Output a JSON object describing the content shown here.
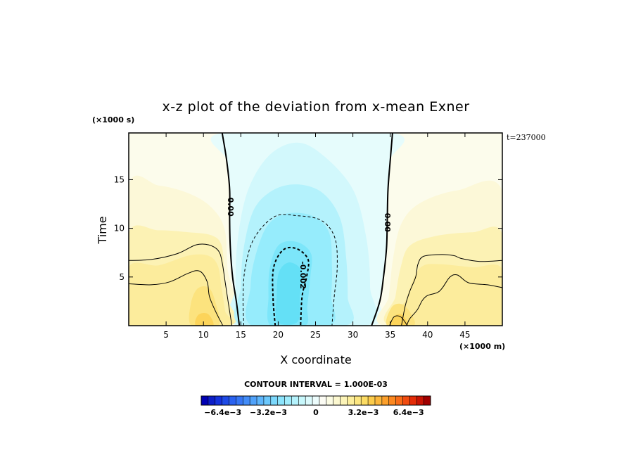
{
  "chart_data": {
    "type": "heatmap",
    "title": "x-z plot of the deviation from x-mean Exner",
    "xlabel": "X coordinate",
    "ylabel": "Time",
    "x_unit": "(×1000 m)",
    "y_unit": "(×1000 s)",
    "xlim": [
      0,
      50
    ],
    "ylim": [
      0,
      19.8
    ],
    "x_ticks": [
      5,
      10,
      15,
      20,
      25,
      30,
      35,
      40,
      45
    ],
    "y_ticks": [
      5,
      10,
      15
    ],
    "time_label": "t=237000",
    "contour_interval_label": "CONTOUR INTERVAL = 1.000E-03",
    "contour_labels": [
      {
        "text": "0.00",
        "x": 13.6,
        "y": 12.2
      },
      {
        "text": "0.00",
        "x": 34.6,
        "y": 10.6
      },
      {
        "text": "-0.002",
        "x": 23.3,
        "y": 5.2
      }
    ],
    "contours": [
      {
        "level": 0,
        "points": [
          [
            12.5,
            19.8
          ],
          [
            13.1,
            17
          ],
          [
            13.5,
            14
          ],
          [
            13.5,
            11
          ],
          [
            13.6,
            8
          ],
          [
            13.9,
            5
          ],
          [
            14.4,
            2.5
          ],
          [
            14.8,
            0
          ]
        ]
      },
      {
        "level": 0,
        "points": [
          [
            35.3,
            19.8
          ],
          [
            35.0,
            17
          ],
          [
            34.7,
            14
          ],
          [
            34.6,
            11
          ],
          [
            34.5,
            8
          ],
          [
            34.1,
            5
          ],
          [
            33.6,
            2.5
          ],
          [
            32.5,
            0
          ]
        ]
      },
      {
        "level": -0.001,
        "points": [
          [
            15.4,
            0
          ],
          [
            15.3,
            3
          ],
          [
            15.6,
            6
          ],
          [
            16.8,
            9
          ],
          [
            19.5,
            11.2
          ],
          [
            22.5,
            11.3
          ],
          [
            25.8,
            10.8
          ],
          [
            27.6,
            9
          ],
          [
            27.9,
            6
          ],
          [
            27.5,
            3
          ],
          [
            27.2,
            0
          ]
        ]
      },
      {
        "level": -0.002,
        "points": [
          [
            19.6,
            0
          ],
          [
            19.3,
            3
          ],
          [
            19.4,
            6
          ],
          [
            20.7,
            7.8
          ],
          [
            22.5,
            7.9
          ],
          [
            24.0,
            6.8
          ],
          [
            23.8,
            5
          ],
          [
            23.2,
            3
          ],
          [
            23.0,
            0
          ]
        ]
      },
      {
        "level": 0.001,
        "points": [
          [
            0,
            6.7
          ],
          [
            3,
            6.8
          ],
          [
            6.5,
            7.4
          ],
          [
            9,
            8.3
          ],
          [
            10.7,
            8.3
          ],
          [
            12,
            7.7
          ],
          [
            12.5,
            6.5
          ],
          [
            12.9,
            4.5
          ],
          [
            13.3,
            2.5
          ],
          [
            13.8,
            0
          ]
        ]
      },
      {
        "level": 0.001,
        "points": [
          [
            0,
            4.3
          ],
          [
            3,
            4.2
          ],
          [
            5.5,
            4.5
          ],
          [
            8,
            5.4
          ],
          [
            9.5,
            5.6
          ],
          [
            10.5,
            4.5
          ],
          [
            10.8,
            3
          ],
          [
            11.6,
            1.5
          ],
          [
            12.6,
            0
          ]
        ]
      },
      {
        "level": 0.001,
        "points": [
          [
            50,
            6.7
          ],
          [
            47,
            6.6
          ],
          [
            44.5,
            6.9
          ],
          [
            43.5,
            7.2
          ],
          [
            41.5,
            7.3
          ],
          [
            39.4,
            7.1
          ],
          [
            38.7,
            6.3
          ],
          [
            38.4,
            5.0
          ],
          [
            37.6,
            3.5
          ],
          [
            37.0,
            2
          ],
          [
            36.5,
            0
          ]
        ]
      },
      {
        "level": 0.001,
        "points": [
          [
            50,
            3.9
          ],
          [
            48,
            4.2
          ],
          [
            45.5,
            4.4
          ],
          [
            44.0,
            5.2
          ],
          [
            43.0,
            5.0
          ],
          [
            42.0,
            3.9
          ],
          [
            41.3,
            3.4
          ],
          [
            40.0,
            3.1
          ],
          [
            39.3,
            2.6
          ],
          [
            38.6,
            1.6
          ],
          [
            37.6,
            0.7
          ],
          [
            37.2,
            0
          ]
        ]
      },
      {
        "level": 0.002,
        "points": [
          [
            34.9,
            0
          ],
          [
            35.5,
            0.9
          ],
          [
            36.4,
            0.9
          ],
          [
            37.3,
            0
          ]
        ]
      }
    ],
    "fields": [
      {
        "color": "#fcfcec",
        "points": [
          [
            0,
            19.8
          ],
          [
            12.5,
            19.8
          ],
          [
            13.1,
            17
          ],
          [
            13.5,
            14
          ],
          [
            13.5,
            11
          ],
          [
            13.6,
            8
          ],
          [
            13.9,
            5
          ],
          [
            14.4,
            2.5
          ],
          [
            14.8,
            0
          ],
          [
            0,
            0
          ]
        ]
      },
      {
        "color": "#fcfcec",
        "points": [
          [
            35.3,
            19.8
          ],
          [
            50,
            19.8
          ],
          [
            50,
            0
          ],
          [
            32.5,
            0
          ],
          [
            33.6,
            2.5
          ],
          [
            34.1,
            5
          ],
          [
            34.5,
            8
          ],
          [
            34.6,
            11
          ],
          [
            34.7,
            14
          ],
          [
            35.0,
            17
          ]
        ]
      },
      {
        "color": "#e6fcfc",
        "points": [
          [
            12.5,
            19.8
          ],
          [
            35.3,
            19.8
          ],
          [
            35.0,
            17
          ],
          [
            34.7,
            14
          ],
          [
            34.6,
            11
          ],
          [
            34.5,
            8
          ],
          [
            34.1,
            5
          ],
          [
            33.6,
            2.5
          ],
          [
            32.5,
            0
          ],
          [
            14.8,
            0
          ],
          [
            14.4,
            2.5
          ],
          [
            13.9,
            5
          ],
          [
            13.6,
            8
          ],
          [
            13.5,
            11
          ],
          [
            13.5,
            14
          ],
          [
            13.1,
            17
          ]
        ]
      },
      {
        "color": "#fcf8d8",
        "points": [
          [
            0,
            14.3
          ],
          [
            4,
            14.4
          ],
          [
            8,
            13.6
          ],
          [
            11,
            12.2
          ],
          [
            12.8,
            10
          ],
          [
            13.2,
            6
          ],
          [
            13.6,
            0
          ],
          [
            0,
            0
          ]
        ]
      },
      {
        "color": "#fcf8d8",
        "points": [
          [
            50,
            13.8
          ],
          [
            44,
            13.9
          ],
          [
            39,
            12.6
          ],
          [
            36.5,
            10.5
          ],
          [
            35.4,
            7
          ],
          [
            34.8,
            3
          ],
          [
            34.2,
            0
          ],
          [
            50,
            0
          ]
        ]
      },
      {
        "color": "#d2f8fc",
        "points": [
          [
            14.6,
            0
          ],
          [
            14.3,
            4
          ],
          [
            14.6,
            9
          ],
          [
            16,
            14
          ],
          [
            18.8,
            17.5
          ],
          [
            22.5,
            18.8
          ],
          [
            26,
            17.5
          ],
          [
            30,
            14
          ],
          [
            31.8,
            9
          ],
          [
            32.3,
            4
          ],
          [
            31.8,
            0
          ]
        ]
      },
      {
        "color": "#fcf2b4",
        "points": [
          [
            0,
            9.5
          ],
          [
            4,
            9.8
          ],
          [
            8,
            9.6
          ],
          [
            11,
            9.3
          ],
          [
            12.4,
            8.3
          ],
          [
            12.8,
            5.5
          ],
          [
            13.2,
            2.8
          ],
          [
            13.5,
            0
          ],
          [
            0,
            0
          ]
        ]
      },
      {
        "color": "#fcf2b4",
        "points": [
          [
            50,
            9.4
          ],
          [
            46,
            9.6
          ],
          [
            41,
            9.2
          ],
          [
            37.6,
            8.2
          ],
          [
            36.4,
            6
          ],
          [
            35.7,
            3
          ],
          [
            35.1,
            0
          ],
          [
            50,
            0
          ]
        ]
      },
      {
        "color": "#b4f2fc",
        "points": [
          [
            15.2,
            0
          ],
          [
            15.0,
            4
          ],
          [
            15.4,
            8
          ],
          [
            16.8,
            12
          ],
          [
            19.5,
            14
          ],
          [
            22.8,
            14.5
          ],
          [
            26,
            13.6
          ],
          [
            28.3,
            11
          ],
          [
            29.1,
            7
          ],
          [
            29.3,
            3
          ],
          [
            29.0,
            0
          ]
        ]
      },
      {
        "color": "#fcec9c",
        "points": [
          [
            0,
            6
          ],
          [
            4,
            6.2
          ],
          [
            8,
            7.2
          ],
          [
            10.6,
            7.2
          ],
          [
            11.9,
            6.2
          ],
          [
            12.4,
            4
          ],
          [
            12.9,
            1.5
          ],
          [
            13.2,
            0
          ],
          [
            0,
            0
          ]
        ]
      },
      {
        "color": "#fcec9c",
        "points": [
          [
            50,
            5.8
          ],
          [
            46,
            6
          ],
          [
            42,
            6.3
          ],
          [
            39.5,
            6.2
          ],
          [
            38.2,
            5
          ],
          [
            37.3,
            3
          ],
          [
            36.5,
            0
          ],
          [
            50,
            0
          ]
        ]
      },
      {
        "color": "#96ecfc",
        "points": [
          [
            16.5,
            0
          ],
          [
            16.3,
            4
          ],
          [
            16.9,
            7
          ],
          [
            18.5,
            10.2
          ],
          [
            21,
            11.5
          ],
          [
            24.5,
            11.3
          ],
          [
            26.8,
            9.6
          ],
          [
            27.2,
            6
          ],
          [
            27.1,
            3
          ],
          [
            26.8,
            0
          ]
        ]
      },
      {
        "color": "#7ce6fa",
        "points": [
          [
            19.0,
            0
          ],
          [
            18.7,
            3
          ],
          [
            18.9,
            6
          ],
          [
            20.1,
            8.3
          ],
          [
            22.5,
            8.6
          ],
          [
            24.4,
            7.4
          ],
          [
            24.3,
            5
          ],
          [
            23.9,
            2
          ],
          [
            23.6,
            0
          ]
        ]
      },
      {
        "color": "#64e0f6",
        "points": [
          [
            19.9,
            0.4
          ],
          [
            19.8,
            3
          ],
          [
            20.1,
            5.5
          ],
          [
            21.5,
            6.5
          ],
          [
            23.1,
            5.6
          ],
          [
            22.9,
            3
          ],
          [
            22.6,
            0.4
          ]
        ]
      },
      {
        "color": "#fce37e",
        "points": [
          [
            8.4,
            0
          ],
          [
            8.3,
            2.2
          ],
          [
            9.2,
            3.8
          ],
          [
            10.7,
            3.9
          ],
          [
            11.6,
            2.4
          ],
          [
            12.0,
            0
          ]
        ]
      },
      {
        "color": "#fce37e",
        "points": [
          [
            34.6,
            0
          ],
          [
            35.2,
            1.9
          ],
          [
            36.6,
            2.2
          ],
          [
            37.8,
            1.2
          ],
          [
            38.1,
            0
          ]
        ]
      },
      {
        "color": "#fcd45a",
        "points": [
          [
            9.0,
            0
          ],
          [
            9.3,
            1.1
          ],
          [
            10.6,
            1.2
          ],
          [
            11.3,
            0
          ]
        ]
      },
      {
        "color": "#fcd45a",
        "points": [
          [
            35.1,
            0
          ],
          [
            35.6,
            1.0
          ],
          [
            36.6,
            1.1
          ],
          [
            37.3,
            0
          ]
        ]
      }
    ],
    "colorbar": {
      "colors": [
        "#0000b4",
        "#0c1ec8",
        "#1432dc",
        "#1e4ae6",
        "#2a62f0",
        "#3676f4",
        "#428cf8",
        "#50a2fa",
        "#5eb6fc",
        "#6cc8fc",
        "#7cd8fc",
        "#8ce4fc",
        "#a0ecfc",
        "#b4f2fc",
        "#c8f8fc",
        "#dcfafc",
        "#ecfcfc",
        "#fcfcf4",
        "#fcfce4",
        "#fcf8d0",
        "#fcf4b8",
        "#fcee9c",
        "#fce680",
        "#fcdc64",
        "#fccc4c",
        "#fcb83c",
        "#fca02c",
        "#fc8820",
        "#f86c18",
        "#f04c10",
        "#e42c08",
        "#c81404",
        "#a00000"
      ],
      "tick_labels": [
        {
          "text": "−6.4e−3",
          "pos": 0.094
        },
        {
          "text": "−3.2e−3",
          "pos": 0.293
        },
        {
          "text": "0",
          "pos": 0.5
        },
        {
          "text": "3.2e−3",
          "pos": 0.707
        },
        {
          "text": "6.4e−3",
          "pos": 0.904
        }
      ]
    }
  }
}
